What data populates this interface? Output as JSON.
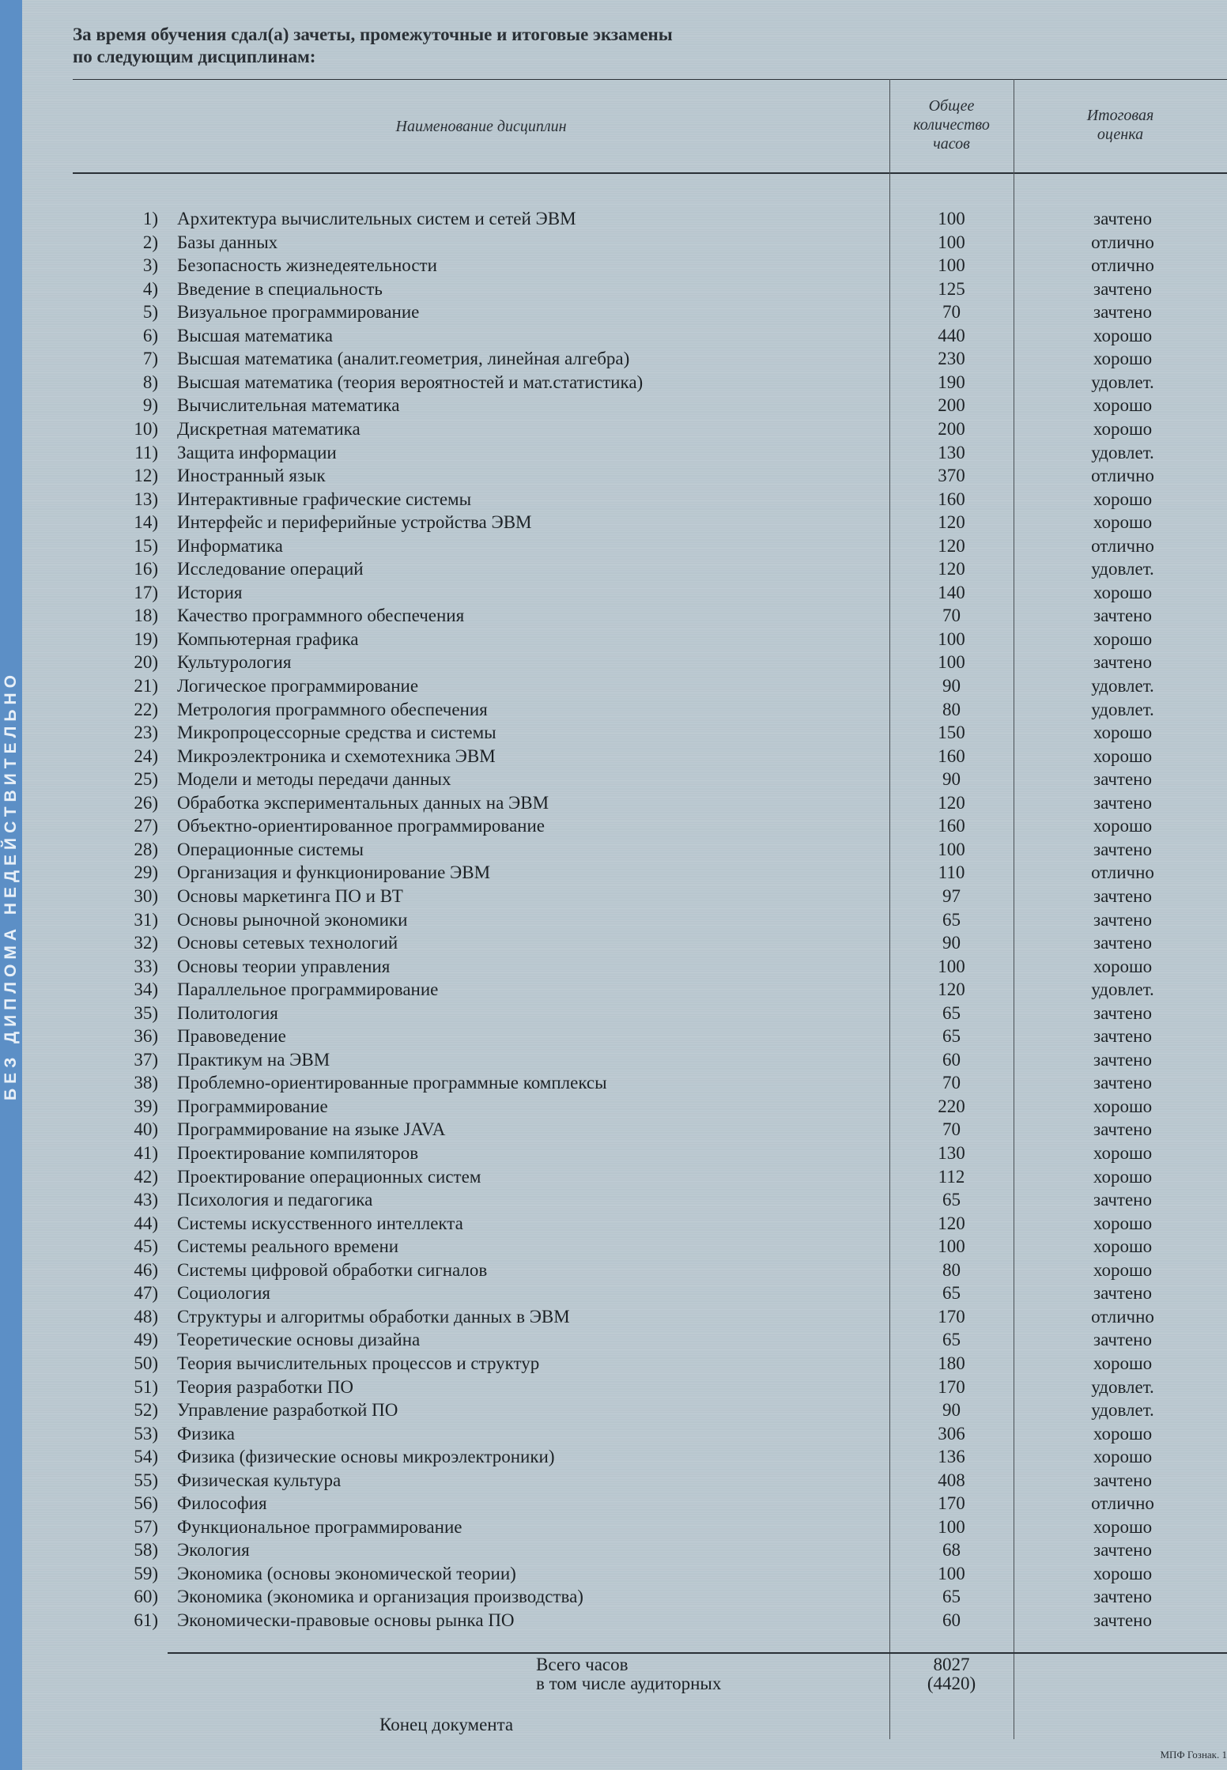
{
  "side_strip": "БЕЗ ДИПЛОМА НЕДЕЙСТВИТЕЛЬНО",
  "intro": [
    "За время обучения сдал(а) зачеты, промежуточные и итоговые экзамены",
    "по следующим дисциплинам:"
  ],
  "headers": {
    "name": "Наименование дисциплин",
    "hours": [
      "Общее",
      "количество",
      "часов"
    ],
    "grade": [
      "Итоговая",
      "оценка"
    ]
  },
  "rows": [
    [
      "Архитектура вычислительных систем и сетей ЭВМ",
      "100",
      "зачтено"
    ],
    [
      "Базы данных",
      "100",
      "отлично"
    ],
    [
      "Безопасность жизнедеятельности",
      "100",
      "отлично"
    ],
    [
      "Введение в специальность",
      "125",
      "зачтено"
    ],
    [
      "Визуальное программирование",
      "70",
      "зачтено"
    ],
    [
      "Высшая математика",
      "440",
      "хорошо"
    ],
    [
      "Высшая математика (аналит.геометрия, линейная алгебра)",
      "230",
      "хорошо"
    ],
    [
      "Высшая математика (теория вероятностей и мат.статистика)",
      "190",
      "удовлет."
    ],
    [
      "Вычислительная математика",
      "200",
      "хорошо"
    ],
    [
      "Дискретная математика",
      "200",
      "хорошо"
    ],
    [
      "Защита информации",
      "130",
      "удовлет."
    ],
    [
      "Иностранный язык",
      "370",
      "отлично"
    ],
    [
      "Интерактивные графические системы",
      "160",
      "хорошо"
    ],
    [
      "Интерфейс и периферийные устройства ЭВМ",
      "120",
      "хорошо"
    ],
    [
      "Информатика",
      "120",
      "отлично"
    ],
    [
      "Исследование операций",
      "120",
      "удовлет."
    ],
    [
      "История",
      "140",
      "хорошо"
    ],
    [
      "Качество программного обеспечения",
      "70",
      "зачтено"
    ],
    [
      "Компьютерная графика",
      "100",
      "хорошо"
    ],
    [
      "Культурология",
      "100",
      "зачтено"
    ],
    [
      "Логическое программирование",
      "90",
      "удовлет."
    ],
    [
      "Метрология программного обеспечения",
      "80",
      "удовлет."
    ],
    [
      "Микропроцессорные средства и системы",
      "150",
      "хорошо"
    ],
    [
      "Микроэлектроника и схемотехника ЭВМ",
      "160",
      "хорошо"
    ],
    [
      "Модели и методы передачи данных",
      "90",
      "зачтено"
    ],
    [
      "Обработка экспериментальных данных на ЭВМ",
      "120",
      "зачтено"
    ],
    [
      "Объектно-ориентированное программирование",
      "160",
      "хорошо"
    ],
    [
      "Операционные системы",
      "100",
      "зачтено"
    ],
    [
      "Организация и функционирование ЭВМ",
      "110",
      "отлично"
    ],
    [
      "Основы маркетинга ПО и ВТ",
      "97",
      "зачтено"
    ],
    [
      "Основы рыночной экономики",
      "65",
      "зачтено"
    ],
    [
      "Основы сетевых технологий",
      "90",
      "зачтено"
    ],
    [
      "Основы теории управления",
      "100",
      "хорошо"
    ],
    [
      "Параллельное программирование",
      "120",
      "удовлет."
    ],
    [
      "Политология",
      "65",
      "зачтено"
    ],
    [
      "Правоведение",
      "65",
      "зачтено"
    ],
    [
      "Практикум на ЭВМ",
      "60",
      "зачтено"
    ],
    [
      "Проблемно-ориентированные программные комплексы",
      "70",
      "зачтено"
    ],
    [
      "Программирование",
      "220",
      "хорошо"
    ],
    [
      "Программирование на языке JAVA",
      "70",
      "зачтено"
    ],
    [
      "Проектирование компиляторов",
      "130",
      "хорошо"
    ],
    [
      "Проектирование операционных систем",
      "112",
      "хорошо"
    ],
    [
      "Психология и педагогика",
      "65",
      "зачтено"
    ],
    [
      "Системы искусственного интеллекта",
      "120",
      "хорошо"
    ],
    [
      "Системы реального времени",
      "100",
      "хорошо"
    ],
    [
      "Системы цифровой обработки сигналов",
      "80",
      "хорошо"
    ],
    [
      "Социология",
      "65",
      "зачтено"
    ],
    [
      "Структуры и алгоритмы обработки данных в ЭВМ",
      "170",
      "отлично"
    ],
    [
      "Теоретические основы дизайна",
      "65",
      "зачтено"
    ],
    [
      "Теория вычислительных процессов и структур",
      "180",
      "хорошо"
    ],
    [
      "Теория разработки ПО",
      "170",
      "удовлет."
    ],
    [
      "Управление разработкой ПО",
      "90",
      "удовлет."
    ],
    [
      "Физика",
      "306",
      "хорошо"
    ],
    [
      "Физика (физические основы микроэлектроники)",
      "136",
      "хорошо"
    ],
    [
      "Физическая культура",
      "408",
      "зачтено"
    ],
    [
      "Философия",
      "170",
      "отлично"
    ],
    [
      "Функциональное программирование",
      "100",
      "хорошо"
    ],
    [
      "Экология",
      "68",
      "зачтено"
    ],
    [
      "Экономика (основы экономической теории)",
      "100",
      "хорошо"
    ],
    [
      "Экономика (экономика и организация производства)",
      "65",
      "зачтено"
    ],
    [
      "Экономически-правовые основы рынка ПО",
      "60",
      "зачтено"
    ]
  ],
  "totals": {
    "total_label": "Всего часов",
    "total_value": "8027",
    "aud_label": "в том числе аудиторных",
    "aud_value": "(4420)"
  },
  "end_label": "Конец документа",
  "footer": "МПФ Гознак. 1"
}
